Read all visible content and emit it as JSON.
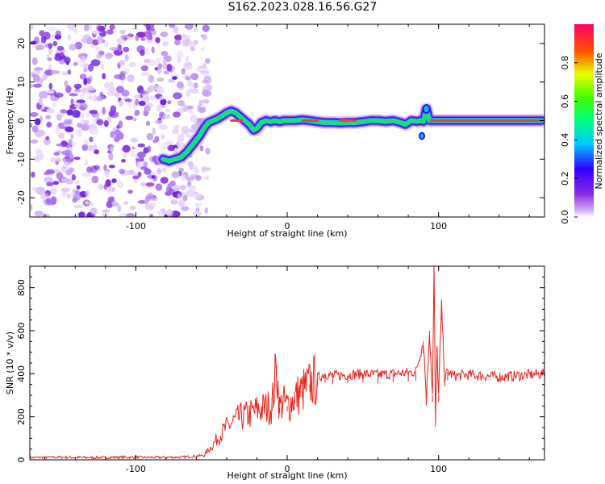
{
  "title": "S162.2023.028.16.56.G27",
  "chart_data": [
    {
      "type": "heatmap",
      "xlabel": "Height of straight line (km)",
      "ylabel": "Frequency (Hz)",
      "xlim": [
        -170,
        170
      ],
      "ylim": [
        -25,
        25
      ],
      "x_ticks": [
        -100,
        0,
        100
      ],
      "y_ticks": [
        -20,
        -10,
        0,
        10,
        20
      ],
      "colorbar": {
        "label": "Normalized spectral amplitude",
        "range": [
          0,
          1
        ],
        "ticks": [
          "0.0",
          "0.2",
          "0.4",
          "0.6",
          "0.8"
        ]
      },
      "ridge": {
        "x": [
          -82,
          -78,
          -74,
          -70,
          -66,
          -62,
          -58,
          -55,
          -52,
          -49,
          -46,
          -43,
          -40,
          -37,
          -34,
          -31,
          -28,
          -25,
          -22,
          -20,
          -17,
          -14,
          -11,
          -8,
          -5,
          -2,
          0,
          5,
          10,
          15,
          20,
          25,
          30,
          35,
          40,
          45,
          50,
          55,
          60,
          65,
          70,
          75,
          78,
          82,
          86,
          88,
          90,
          92,
          94,
          96,
          100,
          110,
          120,
          130,
          140,
          150,
          160,
          168
        ],
        "y": [
          -10,
          -10.5,
          -10,
          -9.5,
          -8,
          -6,
          -4,
          -2,
          -0.5,
          0,
          0.5,
          1.2,
          2,
          2.5,
          2,
          1,
          0,
          -1,
          -2.5,
          -2,
          -0.5,
          0,
          -0.3,
          0,
          -0.3,
          0,
          0,
          0,
          0.2,
          0,
          -0.3,
          -0.5,
          -0.5,
          -0.6,
          -0.5,
          -0.5,
          -0.3,
          0,
          0,
          -0.2,
          0,
          -0.5,
          -1,
          0,
          -0.2,
          0,
          -0.2,
          3,
          0,
          0,
          0,
          0,
          0,
          0,
          0,
          0,
          0,
          0
        ]
      },
      "noise_region_x": [
        -170,
        -60
      ]
    },
    {
      "type": "line",
      "xlabel": "Height of straight line (km)",
      "ylabel": "SNR (10 * v/v)",
      "xlim": [
        -170,
        170
      ],
      "ylim": [
        0,
        900
      ],
      "x_ticks": [
        -100,
        0,
        100
      ],
      "y_ticks": [
        0,
        200,
        400,
        600,
        800
      ],
      "color": "#e8221c",
      "series": [
        {
          "x": [
            -170,
            -150,
            -130,
            -110,
            -90,
            -70,
            -55,
            -50,
            -45,
            -40,
            -35,
            -30,
            -25,
            -20,
            -15,
            -10,
            -7,
            -5,
            -3,
            0,
            5,
            10,
            15,
            20,
            25,
            30,
            40,
            50,
            60,
            70,
            80,
            85,
            90,
            92,
            94,
            96,
            97,
            98,
            99,
            100,
            102,
            104,
            106,
            110,
            120,
            130,
            140,
            150,
            160,
            170
          ],
          "y": [
            10,
            12,
            10,
            12,
            11,
            12,
            20,
            60,
            110,
            150,
            180,
            200,
            210,
            230,
            240,
            250,
            440,
            240,
            270,
            250,
            290,
            320,
            350,
            380,
            400,
            390,
            395,
            400,
            395,
            400,
            405,
            410,
            550,
            280,
            600,
            300,
            890,
            170,
            520,
            300,
            720,
            380,
            410,
            390,
            395,
            390,
            385,
            390,
            395,
            400
          ]
        }
      ]
    }
  ]
}
